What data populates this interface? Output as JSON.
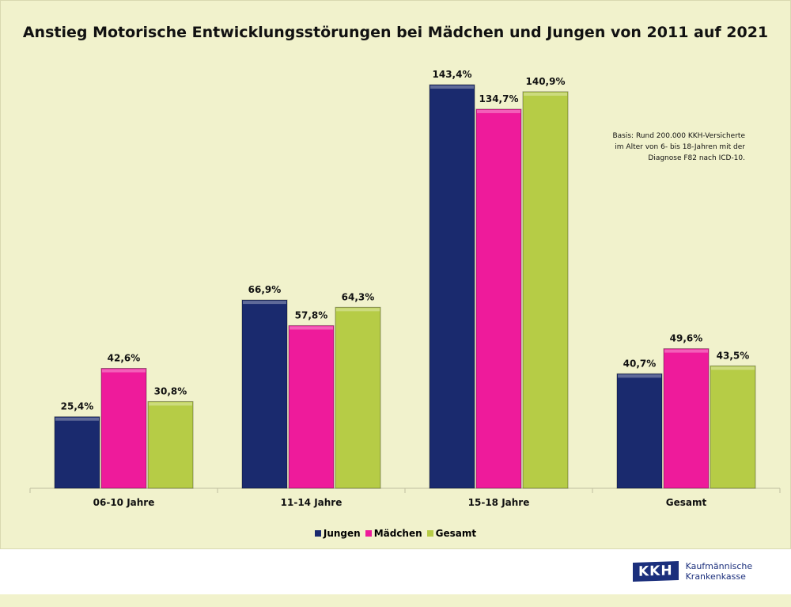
{
  "chart_data": {
    "type": "bar",
    "title": "Anstieg Motorische Entwicklungsstörungen bei Mädchen und Jungen von 2011 auf 2021",
    "categories": [
      "06-10 Jahre",
      "11-14 Jahre",
      "15-18 Jahre",
      "Gesamt"
    ],
    "series": [
      {
        "name": "Jungen",
        "color": "#1a2a6e",
        "values": [
          25.4,
          66.9,
          143.4,
          40.7
        ],
        "labels": [
          "25,4%",
          "66,9%",
          "143,4%",
          "40,7%"
        ]
      },
      {
        "name": "Mädchen",
        "color": "#ee1b9b",
        "values": [
          42.6,
          57.8,
          134.7,
          49.6
        ],
        "labels": [
          "42,6%",
          "57,8%",
          "134,7%",
          "49,6%"
        ]
      },
      {
        "name": "Gesamt",
        "color": "#b6cc46",
        "values": [
          30.8,
          64.3,
          140.9,
          43.5
        ],
        "labels": [
          "30,8%",
          "64,3%",
          "140,9%",
          "43,5%"
        ]
      }
    ],
    "unit": "%",
    "ylim": [
      0,
      160
    ],
    "grid": false,
    "legend": "bottom",
    "note": [
      "Basis: Rund 200.000 KKH-Versicherte",
      "im Alter von 6- bis 18-Jahren mit der",
      "Diagnose F82 nach ICD-10."
    ]
  },
  "logo": {
    "mark": "KKH",
    "line1": "Kaufmännische",
    "line2": "Krankenkasse"
  }
}
